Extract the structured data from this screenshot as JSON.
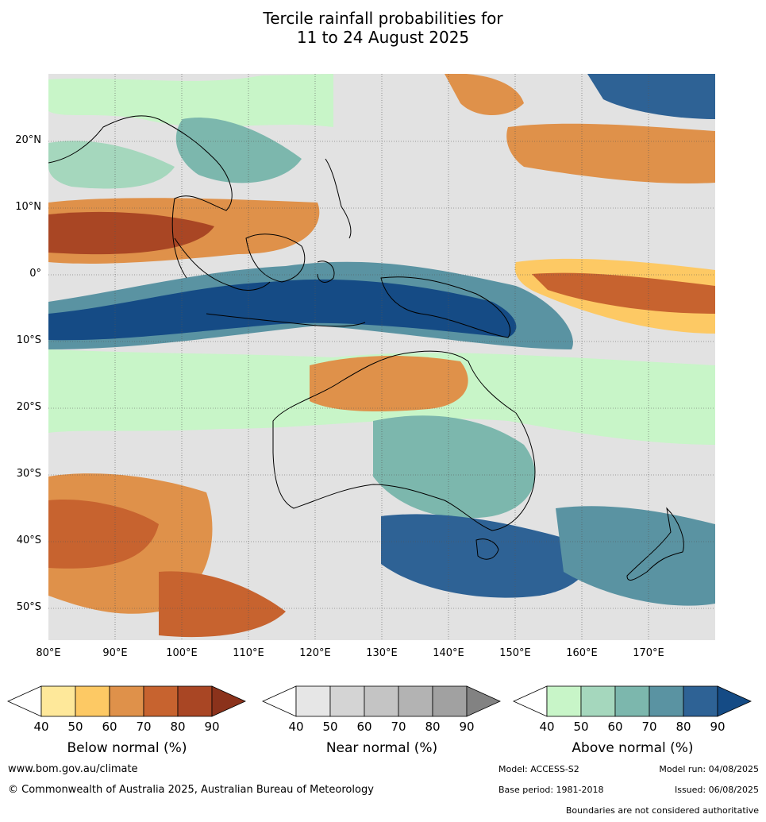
{
  "title": {
    "line1": "Tercile rainfall probabilities for",
    "line2": "11 to 24 August 2025"
  },
  "lat_ticks": [
    "20°N",
    "10°N",
    "0°",
    "10°S",
    "20°S",
    "30°S",
    "40°S",
    "50°S"
  ],
  "lon_ticks": [
    "80°E",
    "90°E",
    "100°E",
    "110°E",
    "120°E",
    "130°E",
    "140°E",
    "150°E",
    "160°E",
    "170°E"
  ],
  "colorbars": [
    {
      "label": "Below normal (%)",
      "ticks": [
        "40",
        "50",
        "60",
        "70",
        "80",
        "90"
      ],
      "colors": [
        "#ffffff",
        "#fee89a",
        "#fdc964",
        "#df914a",
        "#c7632f",
        "#a94624",
        "#8b321b"
      ]
    },
    {
      "label": "Near normal (%)",
      "ticks": [
        "40",
        "50",
        "60",
        "70",
        "80",
        "90"
      ],
      "colors": [
        "#ffffff",
        "#e6e6e6",
        "#d4d4d4",
        "#c4c4c4",
        "#b3b3b3",
        "#a1a1a1",
        "#828282"
      ]
    },
    {
      "label": "Above normal (%)",
      "ticks": [
        "40",
        "50",
        "60",
        "70",
        "80",
        "90"
      ],
      "colors": [
        "#ffffff",
        "#c8f5c8",
        "#a5d7bd",
        "#7cb7ad",
        "#5a93a2",
        "#2e6295",
        "#154b85"
      ]
    }
  ],
  "footer": {
    "website": "www.bom.gov.au/climate",
    "copyright": "© Commonwealth of Australia 2025, Australian Bureau of Meteorology",
    "model": "Model: ACCESS-S2",
    "model_run": "Model run: 04/08/2025",
    "base_period": "Base period: 1981-2018",
    "issued": "Issued: 06/08/2025",
    "disclaimer": "Boundaries are not considered authoritative"
  }
}
